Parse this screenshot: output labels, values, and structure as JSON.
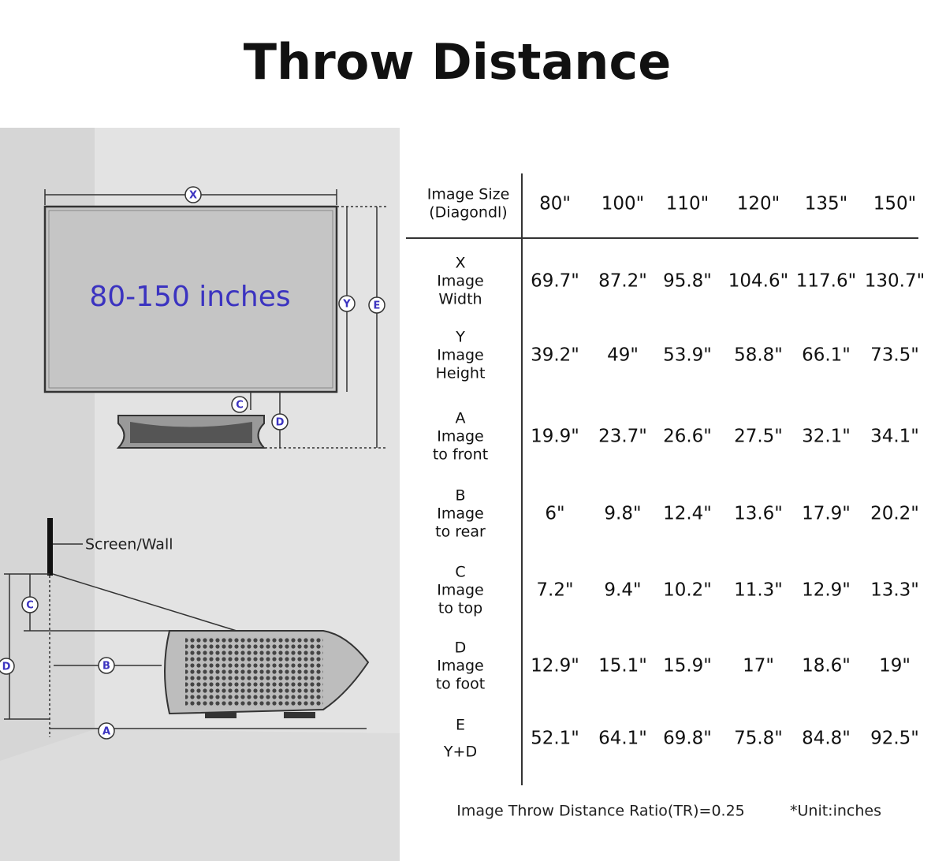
{
  "title": "Throw Distance",
  "diagram": {
    "front": {
      "x_label": "X",
      "y_label": "Y",
      "e_label": "E",
      "c_label": "C",
      "d_label": "D",
      "screen_text": "80-150 inches"
    },
    "side": {
      "wall_label": "Screen/Wall",
      "c_label": "C",
      "b_label": "B",
      "d_label": "D",
      "a_label": "A"
    }
  },
  "table": {
    "header": {
      "label": [
        "Image Size",
        "(Diagondl)"
      ],
      "columns": [
        "80\"",
        "100\"",
        "110\"",
        "120\"",
        "135\"",
        "150\""
      ]
    },
    "rows": [
      {
        "label": [
          "X",
          "Image",
          "Width"
        ],
        "values": [
          "69.7\"",
          "87.2\"",
          "95.8\"",
          "104.6\"",
          "117.6\"",
          "130.7\""
        ]
      },
      {
        "label": [
          "Y",
          "Image",
          "Height"
        ],
        "values": [
          "39.2\"",
          "49\"",
          "53.9\"",
          "58.8\"",
          "66.1\"",
          "73.5\""
        ]
      },
      {
        "label": [
          "A",
          "Image",
          "to front"
        ],
        "values": [
          "19.9\"",
          "23.7\"",
          "26.6\"",
          "27.5\"",
          "32.1\"",
          "34.1\""
        ]
      },
      {
        "label": [
          "B",
          "Image",
          "to rear"
        ],
        "values": [
          "6\"",
          "9.8\"",
          "12.4\"",
          "13.6\"",
          "17.9\"",
          "20.2\""
        ]
      },
      {
        "label": [
          "C",
          "Image",
          "to top"
        ],
        "values": [
          "7.2\"",
          "9.4\"",
          "10.2\"",
          "11.3\"",
          "12.9\"",
          "13.3\""
        ]
      },
      {
        "label": [
          "D",
          "Image",
          "to foot"
        ],
        "values": [
          "12.9\"",
          "15.1\"",
          "15.9\"",
          "17\"",
          "18.6\"",
          "19\""
        ]
      },
      {
        "label": [
          "E",
          "Y+D"
        ],
        "values": [
          "52.1\"",
          "64.1\"",
          "69.8\"",
          "75.8\"",
          "84.8\"",
          "92.5\""
        ]
      }
    ]
  },
  "footer": {
    "ratio": "Image Throw Distance Ratio(TR)=0.25",
    "unit": "*Unit:inches"
  }
}
